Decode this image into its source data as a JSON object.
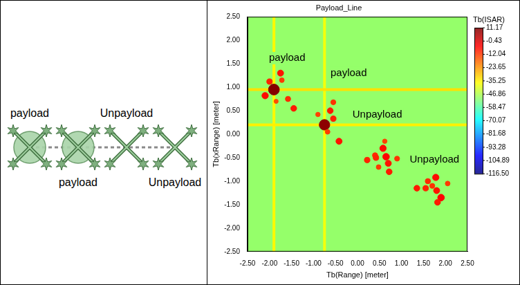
{
  "diagram": {
    "drones": [
      {
        "label": "payload",
        "has_payload": true
      },
      {
        "label": "payload",
        "has_payload": true
      },
      {
        "label": "Unpayload",
        "has_payload": false
      },
      {
        "label": "Unpayload",
        "has_payload": false
      }
    ]
  },
  "chart_data": {
    "type": "scatter",
    "title": "Payload_Line",
    "x_label": "Tb(Range) [meter]",
    "y_label": "Tb(xRange) [meter]",
    "xlim": [
      -2.5,
      2.5
    ],
    "ylim": [
      -2.5,
      2.5
    ],
    "xticks": [
      {
        "value": -2.5,
        "label": "-2.50"
      },
      {
        "value": -2,
        "label": "-2.00"
      },
      {
        "value": -1.5,
        "label": "-1.50"
      },
      {
        "value": -1,
        "label": "-1.00"
      },
      {
        "value": -0.5,
        "label": "-0.50"
      },
      {
        "value": 0,
        "label": "0.00"
      },
      {
        "value": 0.5,
        "label": "0.50"
      },
      {
        "value": 1,
        "label": "1.00"
      },
      {
        "value": 1.5,
        "label": "1.50"
      },
      {
        "value": 2,
        "label": "2.00"
      },
      {
        "value": 2.5,
        "label": "2.50"
      }
    ],
    "yticks": [
      {
        "value": -2.5,
        "label": "-2.50"
      },
      {
        "value": -2,
        "label": "-2.00"
      },
      {
        "value": -1.5,
        "label": "-1.50"
      },
      {
        "value": -1,
        "label": "-1.00"
      },
      {
        "value": -0.5,
        "label": "-0.50"
      },
      {
        "value": 0,
        "label": "0.00"
      },
      {
        "value": 0.5,
        "label": "0.50"
      },
      {
        "value": 1,
        "label": "1.00"
      },
      {
        "value": 1.5,
        "label": "1.50"
      },
      {
        "value": 2,
        "label": "2.00"
      },
      {
        "value": 2.5,
        "label": "2.50"
      }
    ],
    "grid": false,
    "background_value": -50,
    "horizontal_streaks": [
      {
        "y": 0.95,
        "value": -33
      },
      {
        "y": 0.2,
        "value": -35
      }
    ],
    "vertical_streaks": [
      {
        "x": -1.9,
        "value": -36
      },
      {
        "x": -0.75,
        "value": -38
      }
    ],
    "points": [
      {
        "x": -1.9,
        "y": 0.95,
        "value": 10.5
      },
      {
        "x": -2.1,
        "y": 0.82,
        "value": -6
      },
      {
        "x": -2.0,
        "y": 1.12,
        "value": -9
      },
      {
        "x": -1.75,
        "y": 1.3,
        "value": -7
      },
      {
        "x": -1.72,
        "y": 1.15,
        "value": -12
      },
      {
        "x": -1.58,
        "y": 0.75,
        "value": -10
      },
      {
        "x": -1.45,
        "y": 0.55,
        "value": -8
      },
      {
        "x": -1.85,
        "y": 0.7,
        "value": -14
      },
      {
        "x": -0.75,
        "y": 0.2,
        "value": 9.5
      },
      {
        "x": -0.62,
        "y": 0.5,
        "value": -8
      },
      {
        "x": -0.55,
        "y": 0.68,
        "value": -11
      },
      {
        "x": -0.9,
        "y": 0.42,
        "value": -13
      },
      {
        "x": -0.55,
        "y": 0.33,
        "value": -9
      },
      {
        "x": -0.42,
        "y": -0.15,
        "value": -7
      },
      {
        "x": -0.68,
        "y": 0.05,
        "value": -12
      },
      {
        "x": 0.22,
        "y": -0.55,
        "value": -9
      },
      {
        "x": 0.4,
        "y": -0.45,
        "value": -10
      },
      {
        "x": 0.58,
        "y": -0.3,
        "value": -6
      },
      {
        "x": 0.65,
        "y": -0.48,
        "value": -5
      },
      {
        "x": 0.7,
        "y": -0.62,
        "value": -7
      },
      {
        "x": 0.72,
        "y": -0.8,
        "value": -8
      },
      {
        "x": 0.9,
        "y": -0.52,
        "value": -11
      },
      {
        "x": 0.48,
        "y": -0.7,
        "value": -12
      },
      {
        "x": 0.62,
        "y": -0.15,
        "value": -13
      },
      {
        "x": 0.42,
        "y": -0.5,
        "value": -9
      },
      {
        "x": 1.35,
        "y": -1.15,
        "value": -8
      },
      {
        "x": 1.6,
        "y": -1.0,
        "value": -10
      },
      {
        "x": 1.78,
        "y": -0.92,
        "value": -6
      },
      {
        "x": 1.8,
        "y": -1.2,
        "value": -7
      },
      {
        "x": 1.9,
        "y": -1.35,
        "value": -5
      },
      {
        "x": 1.82,
        "y": -1.45,
        "value": -8
      },
      {
        "x": 1.7,
        "y": -1.1,
        "value": -11
      },
      {
        "x": 2.05,
        "y": -1.05,
        "value": -12
      },
      {
        "x": 1.55,
        "y": -1.15,
        "value": -9
      }
    ],
    "annotations": [
      {
        "text": "payload",
        "x": -1.6,
        "y": 1.62
      },
      {
        "text": "payload",
        "x": -0.2,
        "y": 1.3
      },
      {
        "text": "Unpayload",
        "x": 0.45,
        "y": 0.42
      },
      {
        "text": "Unpayload",
        "x": 1.75,
        "y": -0.55
      }
    ],
    "colorbar": {
      "title": "Tb(ISAR)",
      "range": [
        -116.5,
        11.17
      ],
      "ticks": [
        11.17,
        -0.43,
        -12.04,
        -23.65,
        -35.25,
        -46.86,
        -58.47,
        -70.07,
        -81.68,
        -93.28,
        -104.89,
        {
          "value": -116.5,
          "label": "-116.50"
        }
      ]
    }
  }
}
